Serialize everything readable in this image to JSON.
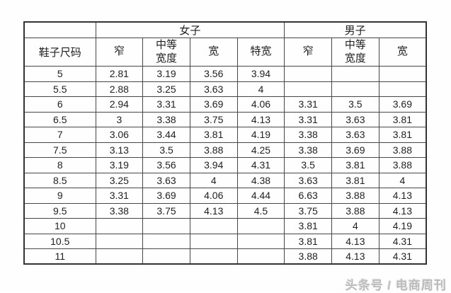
{
  "chart_data": {
    "type": "table",
    "corner_label": "",
    "column_groups": [
      {
        "label": "女子",
        "span": 4
      },
      {
        "label": "男子",
        "span": 3
      }
    ],
    "columns": [
      "鞋子尺码",
      "窄",
      "中等宽度",
      "宽",
      "特宽",
      "窄",
      "中等宽度",
      "宽"
    ],
    "rows": [
      [
        "5",
        "2.81",
        "3.19",
        "3.56",
        "3.94",
        "",
        "",
        ""
      ],
      [
        "5.5",
        "2.88",
        "3.25",
        "3.63",
        "4",
        "",
        "",
        ""
      ],
      [
        "6",
        "2.94",
        "3.31",
        "3.69",
        "4.06",
        "3.31",
        "3.5",
        "3.69"
      ],
      [
        "6.5",
        "3",
        "3.38",
        "3.75",
        "4.13",
        "3.31",
        "3.63",
        "3.81"
      ],
      [
        "7",
        "3.06",
        "3.44",
        "3.81",
        "4.19",
        "3.38",
        "3.63",
        "3.81"
      ],
      [
        "7.5",
        "3.13",
        "3.5",
        "3.88",
        "4.25",
        "3.38",
        "3.69",
        "3.88"
      ],
      [
        "8",
        "3.19",
        "3.56",
        "3.94",
        "4.31",
        "3.5",
        "3.81",
        "3.88"
      ],
      [
        "8.5",
        "3.25",
        "3.63",
        "4",
        "4.38",
        "3.63",
        "3.81",
        "4"
      ],
      [
        "9",
        "3.31",
        "3.69",
        "4.06",
        "4.44",
        "6.63",
        "3.88",
        "4.13"
      ],
      [
        "9.5",
        "3.38",
        "3.75",
        "4.13",
        "4.5",
        "3.75",
        "3.88",
        "4.13"
      ],
      [
        "10",
        "",
        "",
        "",
        "",
        "3.81",
        "4",
        "4.19"
      ],
      [
        "10.5",
        "",
        "",
        "",
        "",
        "3.81",
        "4.13",
        "4.31"
      ],
      [
        "11",
        "",
        "",
        "",
        "",
        "3.88",
        "4.13",
        "4.31"
      ]
    ]
  },
  "watermark": {
    "text": "头条号 / 电商周刊"
  },
  "colors": {
    "background": "#fefefe",
    "border_outer": "#333333",
    "border_inner": "#464646",
    "text": "#1f1f1f",
    "watermark": "#bcbcbc"
  }
}
